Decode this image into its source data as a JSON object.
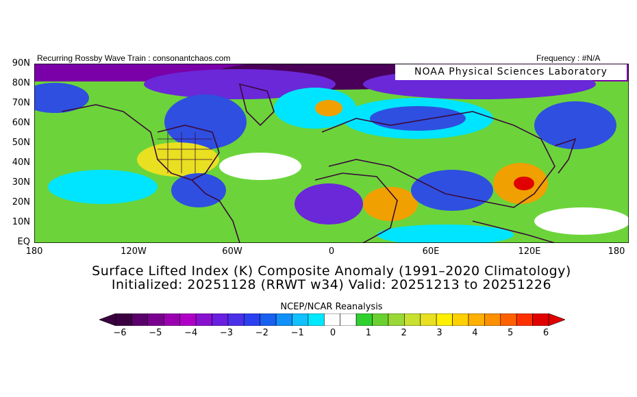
{
  "header": {
    "left": "Recurring Rossby Wave Train : consonantchaos.com",
    "right": "Frequency : #N/A"
  },
  "map": {
    "credit": "NOAA Physical Sciences Laboratory",
    "lat_labels": [
      "90N",
      "80N",
      "70N",
      "60N",
      "50N",
      "40N",
      "30N",
      "20N",
      "10N",
      "EQ"
    ],
    "lon_labels": [
      "180",
      "120W",
      "60W",
      "0",
      "60E",
      "120E",
      "180"
    ],
    "lat_range": [
      0,
      90
    ],
    "lon_range": [
      -180,
      180
    ],
    "colors": {
      "land_outline": "#3a0a3a",
      "strong_negative": "#6a007a",
      "negative": "#2f4fe0",
      "near_zero": "#00e5ff",
      "positive": "#7ed63a",
      "strong_positive": "#f0a000"
    }
  },
  "titles": {
    "line1": "Surface Lifted Index (K) Composite Anomaly (1991–2020 Climatology)",
    "line2": "Initialized: 20251128 (RRWT w34) Valid: 20251213 to 20251226"
  },
  "colorbar": {
    "title": "NCEP/NCAR Reanalysis",
    "labels": [
      "−6",
      "−5",
      "−4",
      "−3",
      "−2",
      "−1",
      "0",
      "1",
      "2",
      "3",
      "4",
      "5",
      "6"
    ],
    "colors": [
      "#3a0040",
      "#5a006a",
      "#7a0090",
      "#9a00b0",
      "#b000c8",
      "#8a10d0",
      "#6a20e0",
      "#4a30e8",
      "#2c40f0",
      "#1860f0",
      "#1090f8",
      "#10c0ff",
      "#00e8ff",
      "#ffffff",
      "#ffffff",
      "#30d030",
      "#6ad030",
      "#9ad838",
      "#c8e030",
      "#e8e020",
      "#fff000",
      "#ffd000",
      "#ffb000",
      "#ff9000",
      "#ff6000",
      "#ff3000",
      "#e00000"
    ]
  }
}
